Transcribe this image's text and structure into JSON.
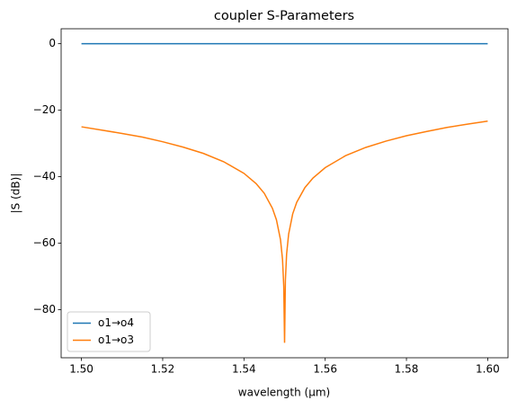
{
  "chart_data": {
    "type": "line",
    "title": "coupler S-Parameters",
    "xlabel": "wavelength (µm)",
    "ylabel": "|S (dB)|",
    "x": [
      1.5,
      1.505,
      1.51,
      1.515,
      1.52,
      1.525,
      1.53,
      1.535,
      1.54,
      1.543,
      1.545,
      1.547,
      1.548,
      1.549,
      1.5495,
      1.5498,
      1.55,
      1.5502,
      1.5505,
      1.551,
      1.552,
      1.553,
      1.555,
      1.557,
      1.56,
      1.565,
      1.57,
      1.575,
      1.58,
      1.585,
      1.59,
      1.595,
      1.6
    ],
    "series": [
      {
        "name": "o1→o4",
        "color": "#1f77b4",
        "values": [
          0,
          0,
          0,
          0,
          0,
          0,
          0,
          0,
          0,
          0,
          0,
          0,
          0,
          0,
          0,
          0,
          0,
          0,
          0,
          0,
          0,
          0,
          0,
          0,
          0,
          0,
          0,
          0,
          0,
          0,
          0,
          0,
          0
        ]
      },
      {
        "name": "o1→o3",
        "color": "#ff7f0e",
        "values": [
          -25.0,
          -26.0,
          -27.0,
          -28.1,
          -29.5,
          -31.1,
          -33.0,
          -35.5,
          -39.0,
          -42.1,
          -45.0,
          -49.5,
          -53.0,
          -59.0,
          -65.0,
          -73.0,
          -90.0,
          -71.2,
          -63.3,
          -57.3,
          -51.2,
          -47.7,
          -43.3,
          -40.4,
          -37.3,
          -33.7,
          -31.2,
          -29.3,
          -27.7,
          -26.4,
          -25.2,
          -24.2,
          -23.3
        ]
      }
    ],
    "xlim": [
      1.495,
      1.605
    ],
    "xticks": [
      {
        "value": 1.5,
        "label": "1.50"
      },
      1.52,
      1.54,
      1.56,
      1.58,
      {
        "value": 1.6,
        "label": "1.60"
      }
    ],
    "ylim": [
      -94.5,
      4.5
    ],
    "yticks": [
      {
        "value": -80,
        "label": "−80"
      },
      {
        "value": -60,
        "label": "−60"
      },
      {
        "value": -40,
        "label": "−40"
      },
      {
        "value": -20,
        "label": "−20"
      },
      0
    ],
    "legend": "lower left"
  }
}
